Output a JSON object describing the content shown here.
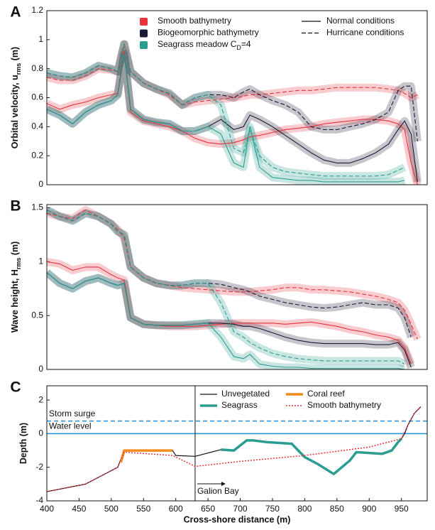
{
  "chart_data": [
    {
      "type": "line",
      "panel_label": "A",
      "ylabel": {
        "text": "Orbital velocity, u",
        "sub": "rms",
        "suffix": " (m)"
      },
      "xlim": [
        400,
        990
      ],
      "ylim": [
        0,
        1.2
      ],
      "yticks": [
        0,
        0.2,
        0.4,
        0.6,
        0.8,
        1,
        1.2
      ],
      "x": [
        400,
        420,
        440,
        460,
        480,
        500,
        510,
        520,
        530,
        550,
        570,
        590,
        610,
        630,
        650,
        670,
        690,
        705,
        715,
        730,
        750,
        770,
        790,
        810,
        830,
        850,
        870,
        890,
        910,
        930,
        945,
        955,
        965,
        975
      ],
      "legend": {
        "colors": [
          {
            "label": "Smooth bathymetry",
            "color": "#e8343f"
          },
          {
            "label": "Biogeomorphic bathymetry",
            "color": "#1b1a35"
          },
          {
            "label": "Seagrass  meadow C",
            "sub": "D",
            "suffix": "=4",
            "color": "#2a9d8f"
          }
        ],
        "styles": [
          {
            "label": "Normal conditions",
            "dashed": false
          },
          {
            "label": "Hurricane conditions",
            "dashed": true
          }
        ]
      },
      "series": [
        {
          "color": "#e8343f",
          "dashed": false,
          "values": [
            0.56,
            0.52,
            0.55,
            0.57,
            0.6,
            0.62,
            0.63,
            0.92,
            0.5,
            0.44,
            0.42,
            0.4,
            0.37,
            0.32,
            0.29,
            0.28,
            0.29,
            0.31,
            0.33,
            0.34,
            0.36,
            0.38,
            0.39,
            0.4,
            0.42,
            0.43,
            0.44,
            0.45,
            0.45,
            0.44,
            0.42,
            0.38,
            0.15,
            0
          ]
        },
        {
          "color": "#e8343f",
          "dashed": true,
          "values": [
            0.74,
            0.72,
            0.72,
            0.75,
            0.8,
            0.79,
            0.78,
            0.97,
            0.78,
            0.7,
            0.66,
            0.62,
            0.55,
            0.57,
            0.58,
            0.59,
            0.6,
            0.61,
            0.62,
            0.62,
            0.63,
            0.64,
            0.65,
            0.65,
            0.66,
            0.67,
            0.67,
            0.67,
            0.67,
            0.66,
            0.65,
            0.63,
            0.6,
            0.62
          ]
        },
        {
          "color": "#1b1a35",
          "dashed": false,
          "values": [
            0.52,
            0.48,
            0.42,
            0.5,
            0.55,
            0.58,
            0.62,
            0.9,
            0.52,
            0.45,
            0.43,
            0.42,
            0.37,
            0.37,
            0.4,
            0.45,
            0.38,
            0.4,
            0.48,
            0.45,
            0.4,
            0.34,
            0.28,
            0.22,
            0.17,
            0.15,
            0.15,
            0.18,
            0.22,
            0.28,
            0.38,
            0.44,
            0.35,
            0.02
          ]
        },
        {
          "color": "#1b1a35",
          "dashed": true,
          "values": [
            0.77,
            0.75,
            0.74,
            0.77,
            0.82,
            0.8,
            0.78,
            0.97,
            0.78,
            0.7,
            0.66,
            0.63,
            0.55,
            0.6,
            0.62,
            0.62,
            0.6,
            0.64,
            0.66,
            0.62,
            0.58,
            0.55,
            0.5,
            0.4,
            0.38,
            0.38,
            0.4,
            0.42,
            0.45,
            0.5,
            0.65,
            0.68,
            0.68,
            0.3
          ]
        },
        {
          "color": "#2a9d8f",
          "dashed": false,
          "values": [
            0.52,
            0.48,
            0.42,
            0.5,
            0.55,
            0.58,
            0.62,
            0.9,
            0.52,
            0.45,
            0.43,
            0.42,
            0.37,
            0.37,
            0.4,
            0.35,
            0.15,
            0.12,
            0.4,
            0.12,
            0.05,
            0.04,
            0.03,
            0.03,
            0.02,
            0.02,
            0.02,
            0.02,
            0.02,
            0.02,
            0.02,
            0.03,
            null,
            null
          ]
        },
        {
          "color": "#2a9d8f",
          "dashed": true,
          "values": [
            0.77,
            0.75,
            0.74,
            0.77,
            0.82,
            0.8,
            0.78,
            0.97,
            0.78,
            0.7,
            0.66,
            0.63,
            0.55,
            0.6,
            0.62,
            0.55,
            0.25,
            0.22,
            0.38,
            0.2,
            0.12,
            0.09,
            0.08,
            0.07,
            0.06,
            0.06,
            0.06,
            0.06,
            0.06,
            0.07,
            0.1,
            0.12,
            null,
            null
          ]
        }
      ]
    },
    {
      "type": "line",
      "panel_label": "B",
      "ylabel": {
        "text": "Wave height, H",
        "sub": "rms",
        "suffix": " (m)"
      },
      "xlim": [
        400,
        990
      ],
      "ylim": [
        0,
        1.53
      ],
      "yticks": [
        0,
        0.5,
        1,
        1.5
      ],
      "x": [
        400,
        420,
        440,
        460,
        480,
        500,
        510,
        520,
        530,
        550,
        570,
        590,
        610,
        630,
        650,
        670,
        690,
        705,
        715,
        730,
        750,
        770,
        790,
        810,
        830,
        850,
        870,
        890,
        910,
        930,
        945,
        955,
        965,
        975
      ],
      "series": [
        {
          "color": "#e8343f",
          "dashed": false,
          "values": [
            1,
            0.98,
            0.92,
            0.95,
            0.95,
            0.88,
            0.85,
            0.83,
            0.48,
            0.42,
            0.41,
            0.4,
            0.4,
            0.4,
            0.41,
            0.42,
            0.43,
            0.43,
            0.43,
            0.43,
            0.43,
            0.42,
            0.43,
            0.44,
            0.42,
            0.4,
            0.37,
            0.35,
            0.32,
            0.3,
            0.27,
            0.2,
            0.05,
            null
          ]
        },
        {
          "color": "#e8343f",
          "dashed": true,
          "values": [
            1.45,
            1.42,
            1.4,
            1.48,
            1.42,
            1.35,
            1.3,
            1.22,
            0.95,
            0.85,
            0.8,
            0.78,
            0.76,
            0.75,
            0.74,
            0.73,
            0.72,
            0.72,
            0.72,
            0.73,
            0.74,
            0.76,
            0.76,
            0.74,
            0.74,
            0.73,
            0.72,
            0.7,
            0.68,
            0.65,
            0.62,
            0.55,
            0.42,
            0.28
          ]
        },
        {
          "color": "#1b1a35",
          "dashed": false,
          "values": [
            0.9,
            0.8,
            0.75,
            0.82,
            0.85,
            0.8,
            0.78,
            0.8,
            0.48,
            0.42,
            0.41,
            0.41,
            0.41,
            0.42,
            0.43,
            0.43,
            0.42,
            0.4,
            0.4,
            0.38,
            0.34,
            0.3,
            0.27,
            0.25,
            0.24,
            0.24,
            0.24,
            0.24,
            0.23,
            0.23,
            0.25,
            0.18,
            0.02,
            null
          ]
        },
        {
          "color": "#1b1a35",
          "dashed": true,
          "values": [
            1.48,
            1.42,
            1.38,
            1.45,
            1.42,
            1.35,
            1.28,
            1.25,
            0.95,
            0.85,
            0.8,
            0.78,
            0.78,
            0.8,
            0.8,
            0.79,
            0.76,
            0.74,
            0.72,
            0.68,
            0.65,
            0.62,
            0.6,
            0.58,
            0.57,
            0.58,
            0.6,
            0.62,
            0.6,
            0.6,
            0.57,
            0.48,
            0.3,
            null
          ]
        },
        {
          "color": "#2a9d8f",
          "dashed": false,
          "values": [
            0.9,
            0.8,
            0.75,
            0.82,
            0.85,
            0.8,
            0.78,
            0.8,
            0.48,
            0.42,
            0.41,
            0.41,
            0.41,
            0.42,
            0.43,
            0.3,
            0.12,
            0.1,
            0.14,
            0.05,
            0.03,
            0.02,
            0.02,
            0.01,
            0.01,
            0.01,
            0.01,
            0.01,
            0.01,
            0.01,
            0.01,
            0,
            null,
            null
          ]
        },
        {
          "color": "#2a9d8f",
          "dashed": true,
          "values": [
            1.48,
            1.42,
            1.38,
            1.45,
            1.42,
            1.35,
            1.28,
            1.25,
            0.95,
            0.85,
            0.8,
            0.78,
            0.78,
            0.8,
            0.8,
            0.62,
            0.35,
            0.3,
            0.25,
            0.2,
            0.15,
            0.12,
            0.1,
            0.09,
            0.08,
            0.08,
            0.08,
            0.08,
            0.08,
            0.08,
            0.08,
            0.05,
            null,
            null
          ]
        }
      ]
    },
    {
      "type": "line",
      "panel_label": "C",
      "ylabel": {
        "text": "Depth (m)"
      },
      "xlabel": "Cross-shore distance (m)",
      "xlim": [
        400,
        990
      ],
      "ylim": [
        -4,
        2.85
      ],
      "yticks": [
        -4,
        -2,
        0,
        2
      ],
      "xticks": [
        400,
        450,
        500,
        550,
        600,
        650,
        700,
        750,
        800,
        850,
        900,
        950
      ],
      "reference_lines": [
        {
          "label": "Storm surge",
          "value": 0.75,
          "color": "#1f8fd6",
          "dashed": true
        },
        {
          "label": "Water level",
          "value": 0,
          "color": "#1f8fd6",
          "dashed": false
        }
      ],
      "vline": 630,
      "annotation": "Galion Bay",
      "series": [
        {
          "name": "Unvegetated",
          "color": "#111111",
          "width": 1.2,
          "dash": "none",
          "x": [
            400,
            460,
            510,
            520,
            595,
            600,
            630,
            670,
            690,
            710,
            720,
            740,
            760,
            780,
            800,
            820,
            845,
            870,
            880,
            900,
            920,
            935,
            945,
            950,
            955,
            960,
            970,
            980
          ],
          "values": [
            -3.45,
            -3,
            -2,
            -1,
            -1,
            -1.3,
            -1.35,
            -0.95,
            -1,
            -0.4,
            -0.4,
            -0.5,
            -0.55,
            -0.6,
            -1.4,
            -1.8,
            -2.4,
            -1.6,
            -1.1,
            -1.15,
            -1.2,
            -1,
            -0.5,
            -0.3,
            0,
            0.5,
            1.2,
            1.6
          ]
        },
        {
          "name": "Seagrass",
          "color": "#2a9d8f",
          "width": 3.5,
          "dash": "none",
          "x": [
            670,
            690,
            710,
            720,
            740,
            760,
            780,
            800,
            820,
            845,
            870,
            880,
            900,
            920,
            935,
            945,
            950
          ],
          "values": [
            -0.95,
            -1,
            -0.4,
            -0.4,
            -0.5,
            -0.55,
            -0.6,
            -1.4,
            -1.8,
            -2.4,
            -1.6,
            -1.1,
            -1.15,
            -1.2,
            -1,
            -0.5,
            -0.3
          ]
        },
        {
          "name": "Coral reef",
          "color": "#f28c1c",
          "width": 3.5,
          "dash": "none",
          "x": [
            515,
            520,
            595
          ],
          "values": [
            -1.7,
            -1,
            -1
          ]
        },
        {
          "name": "Smooth bathymetry",
          "color": "#e8343f",
          "width": 1.5,
          "dash": "2 2",
          "x": [
            400,
            460,
            510,
            520,
            595,
            630,
            700,
            800,
            900,
            950,
            960,
            970,
            980
          ],
          "values": [
            -3.45,
            -3,
            -2,
            -1.1,
            -1.3,
            -1.95,
            -1.65,
            -1.3,
            -0.8,
            -0.3,
            0.5,
            1.2,
            1.6
          ]
        }
      ]
    }
  ]
}
